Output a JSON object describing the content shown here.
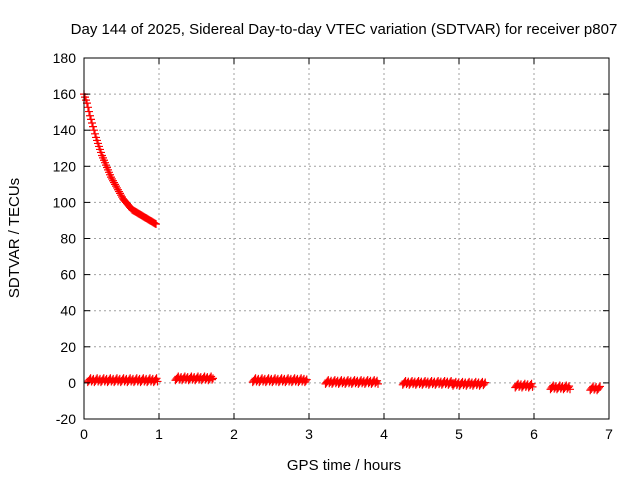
{
  "chart_data": {
    "type": "scatter",
    "title": "Day 144 of 2025, Sidereal Day-to-day VTEC variation (SDTVAR) for receiver p807",
    "xlabel": "GPS time / hours",
    "ylabel": "SDTVAR / TECUs",
    "xlim": [
      0,
      7
    ],
    "ylim": [
      -20,
      180
    ],
    "xticks": [
      0,
      1,
      2,
      3,
      4,
      5,
      6,
      7
    ],
    "yticks": [
      -20,
      0,
      20,
      40,
      60,
      80,
      100,
      120,
      140,
      160,
      180
    ],
    "grid": true,
    "marker": "plus",
    "series_color": "#ff0000",
    "series": [
      {
        "name": "decaying arc",
        "points": [
          [
            0.0,
            160
          ],
          [
            0.04,
            155
          ],
          [
            0.08,
            148
          ],
          [
            0.12,
            142
          ],
          [
            0.16,
            136
          ],
          [
            0.2,
            131
          ],
          [
            0.24,
            126
          ],
          [
            0.28,
            122
          ],
          [
            0.32,
            118
          ],
          [
            0.36,
            114
          ],
          [
            0.4,
            111
          ],
          [
            0.44,
            108
          ],
          [
            0.48,
            105
          ],
          [
            0.52,
            102
          ],
          [
            0.56,
            100
          ],
          [
            0.6,
            98
          ],
          [
            0.64,
            96
          ],
          [
            0.68,
            95
          ],
          [
            0.72,
            94
          ],
          [
            0.76,
            93
          ],
          [
            0.8,
            92
          ],
          [
            0.84,
            91
          ],
          [
            0.88,
            90
          ],
          [
            0.92,
            89
          ],
          [
            0.96,
            88
          ]
        ]
      },
      {
        "name": "near-zero segments",
        "segments": [
          {
            "x_start": 0.05,
            "x_end": 0.98,
            "y": 1.5
          },
          {
            "x_start": 1.22,
            "x_end": 1.72,
            "y": 2.5
          },
          {
            "x_start": 2.25,
            "x_end": 2.97,
            "y": 1.5
          },
          {
            "x_start": 3.22,
            "x_end": 3.92,
            "y": 0.5
          },
          {
            "x_start": 4.25,
            "x_end": 4.92,
            "y": 0.0
          },
          {
            "x_start": 4.92,
            "x_end": 5.35,
            "y": -0.5
          },
          {
            "x_start": 5.75,
            "x_end": 5.98,
            "y": -1.5
          },
          {
            "x_start": 6.22,
            "x_end": 6.48,
            "y": -2.5
          },
          {
            "x_start": 6.75,
            "x_end": 6.88,
            "y": -3.0
          }
        ]
      }
    ]
  }
}
